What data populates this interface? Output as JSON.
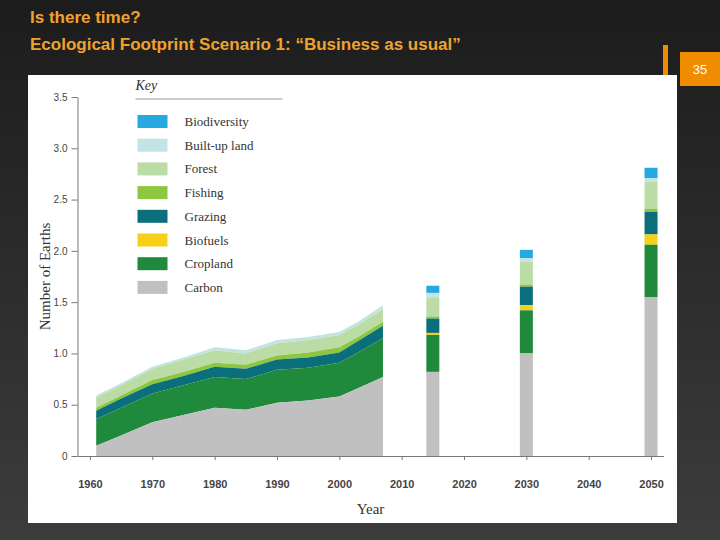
{
  "slide_number": 35,
  "chart_data": {
    "type": "area",
    "stacked": true,
    "title": "Is there time?",
    "subtitle": "Ecological Footprint Scenario 1: “Business as usual”",
    "xlabel": "Year",
    "ylabel": "Number of Earths",
    "legend": "top-left",
    "legend_title": "Key",
    "xlim": [
      1958,
      2052
    ],
    "xticks": [
      1960,
      1970,
      1980,
      1990,
      2000,
      2010,
      2020,
      2030,
      2040,
      2050
    ],
    "ylim": [
      0,
      3.5
    ],
    "yticks": [
      0,
      0.5,
      {
        "value": 1,
        "label": "1.0"
      },
      1.5,
      {
        "value": 2,
        "label": "2.0"
      },
      2.5,
      {
        "value": 3,
        "label": "3.0"
      },
      3.5
    ],
    "x": [
      1961,
      1965,
      1970,
      1975,
      1980,
      1985,
      1990,
      1995,
      2000,
      2003,
      2007
    ],
    "bar_x": [
      2015,
      2030,
      2050
    ],
    "series": [
      {
        "name": "Biodiversity",
        "color": "#26a9e0",
        "values": [
          null,
          null,
          null,
          null,
          null,
          null,
          null,
          null,
          null,
          null,
          null
        ],
        "bar_values": [
          0.07,
          0.08,
          0.1
        ]
      },
      {
        "name": "Built-up land",
        "color": "#c2e4e4",
        "values": [
          0.02,
          0.02,
          0.02,
          0.02,
          0.03,
          0.03,
          0.03,
          0.03,
          0.03,
          0.03,
          0.04
        ],
        "bar_values": [
          0.05,
          0.04,
          0.04
        ]
      },
      {
        "name": "Forest",
        "color": "#bcdca6",
        "values": [
          0.1,
          0.1,
          0.11,
          0.12,
          0.12,
          0.11,
          0.12,
          0.12,
          0.12,
          0.12,
          0.12
        ],
        "bar_values": [
          0.18,
          0.22,
          0.26
        ]
      },
      {
        "name": "Fishing",
        "color": "#8dc63f",
        "values": [
          0.03,
          0.03,
          0.04,
          0.04,
          0.04,
          0.04,
          0.04,
          0.05,
          0.05,
          0.04,
          0.04
        ],
        "bar_values": [
          0.02,
          0.02,
          0.03
        ]
      },
      {
        "name": "Grazing",
        "color": "#0b6e7b",
        "values": [
          0.08,
          0.09,
          0.09,
          0.09,
          0.1,
          0.1,
          0.1,
          0.1,
          0.1,
          0.11,
          0.12
        ],
        "bar_values": [
          0.14,
          0.18,
          0.22
        ]
      },
      {
        "name": "Biofuels",
        "color": "#f7d117",
        "values": [
          null,
          null,
          null,
          null,
          null,
          null,
          null,
          null,
          null,
          null,
          null
        ],
        "bar_values": [
          0.02,
          0.05,
          0.1
        ]
      },
      {
        "name": "Cropland",
        "color": "#1f8a3c",
        "values": [
          0.26,
          0.27,
          0.28,
          0.29,
          0.3,
          0.3,
          0.32,
          0.32,
          0.33,
          0.35,
          0.38
        ],
        "bar_values": [
          0.36,
          0.42,
          0.51
        ]
      },
      {
        "name": "Carbon",
        "color": "#c0c0c0",
        "values": [
          0.1,
          0.2,
          0.33,
          0.4,
          0.47,
          0.45,
          0.52,
          0.54,
          0.58,
          0.66,
          0.77
        ],
        "bar_values": [
          0.82,
          1.0,
          1.55
        ]
      }
    ]
  }
}
